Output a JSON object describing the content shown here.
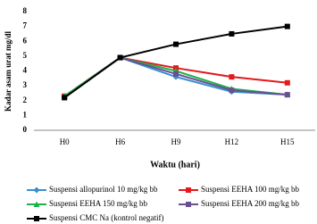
{
  "chart_data": {
    "type": "line",
    "x_label": "Waktu (hari)",
    "y_label": "Kadar asam urat mg/dl",
    "categories": [
      "H0",
      "H6",
      "H9",
      "H12",
      "H15"
    ],
    "ylim": [
      0,
      8
    ],
    "yticks": [
      0,
      1,
      2,
      3,
      4,
      5,
      6,
      7,
      8
    ],
    "series": [
      {
        "name": "Suspensi allopurinol 10 mg/kg bb",
        "color": "#3a8fd0",
        "marker": "diamond",
        "values": [
          2.3,
          4.9,
          3.6,
          2.6,
          2.4
        ]
      },
      {
        "name": "Suspensi EEHA 100 mg/kg bb",
        "color": "#e3191c",
        "marker": "square",
        "values": [
          2.3,
          4.9,
          4.2,
          3.6,
          3.2
        ]
      },
      {
        "name": "Suspensi EEHA 150 mg/kg bb",
        "color": "#1db34a",
        "marker": "triangle",
        "values": [
          2.3,
          4.9,
          4.0,
          2.8,
          2.4
        ]
      },
      {
        "name": "Suspensi EEHA 200 mg/kg bb",
        "color": "#6a4f93",
        "marker": "square",
        "values": [
          2.2,
          4.9,
          3.8,
          2.7,
          2.4
        ]
      },
      {
        "name": "Suspensi CMC Na (kontrol negatif)",
        "color": "#000000",
        "marker": "square",
        "values": [
          2.2,
          4.9,
          5.8,
          6.5,
          7.0
        ]
      }
    ]
  }
}
